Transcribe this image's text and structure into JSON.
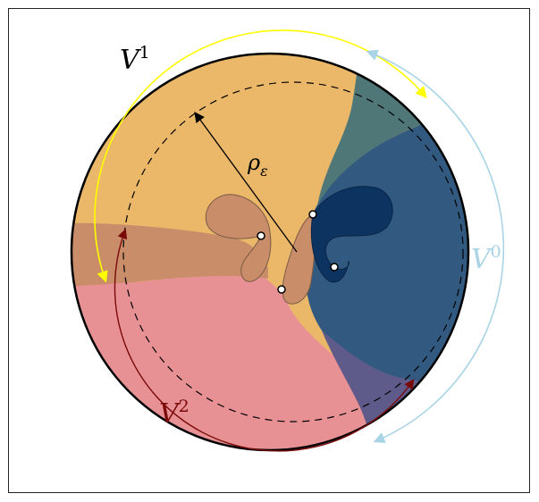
{
  "labels": {
    "v1": {
      "base": "V",
      "sup": "1"
    },
    "v0": {
      "base": "V",
      "sup": "0"
    },
    "v2": {
      "base": "V",
      "sup": "2"
    },
    "radius": {
      "base": "ρ",
      "sub": "ε"
    }
  },
  "colors": {
    "background": "#ffffff",
    "region_v1_orange": "#ebb86a",
    "region_v0_blue": "#325a80",
    "region_v2_pink": "#e89194",
    "region_teal": "#507777",
    "region_purple": "#5e5a8a",
    "region_brown": "#c98e69",
    "petal_dark_navy": "#0d3461",
    "arc_v1_yellow": "#ffff00",
    "arc_v0_lightblue": "#a8d4e6",
    "arc_v2_darkred": "#7a0a0a",
    "outline": "#000000"
  },
  "points": [
    {
      "name": "singular-point"
    },
    {
      "name": "singular-point"
    },
    {
      "name": "singular-point"
    },
    {
      "name": "singular-point"
    }
  ]
}
